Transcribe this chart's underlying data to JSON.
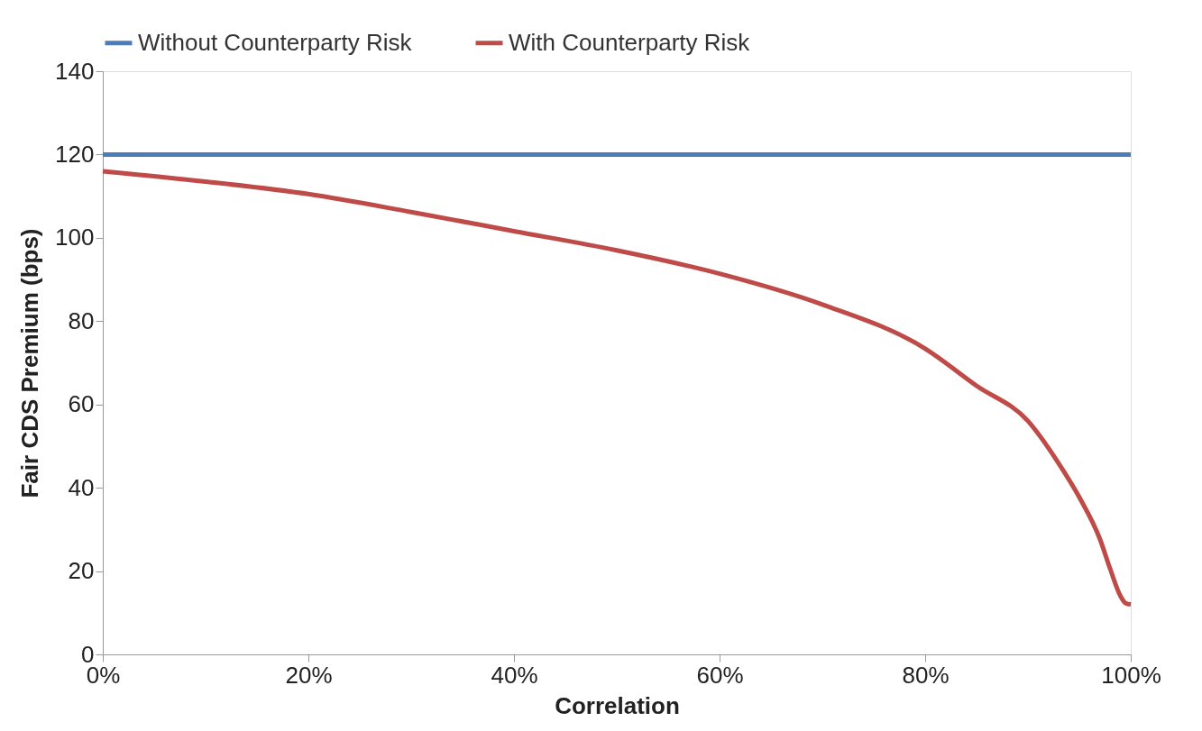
{
  "chart_data": {
    "type": "line",
    "xlabel": "Correlation",
    "ylabel": "Fair CDS Premium (bps)",
    "xlim": [
      0,
      100
    ],
    "xticks": [
      {
        "value": 0,
        "label": "0%"
      },
      {
        "value": 20,
        "label": "20%"
      },
      {
        "value": 40,
        "label": "40%"
      },
      {
        "value": 60,
        "label": "60%"
      },
      {
        "value": 80,
        "label": "80%"
      },
      {
        "value": 100,
        "label": "100%"
      }
    ],
    "ylim": [
      0,
      140
    ],
    "yticks": [
      0,
      20,
      40,
      60,
      80,
      100,
      120,
      140
    ],
    "grid": false,
    "legend": "top",
    "marker": "none",
    "line_style": "solid",
    "series": [
      {
        "name": "Without Counterparty Risk",
        "color": "#4a7ebb",
        "x": [
          0,
          100
        ],
        "values": [
          120,
          120
        ]
      },
      {
        "name": "With Counterparty Risk",
        "color": "#be4b48",
        "x": [
          0,
          10,
          20,
          30,
          40,
          50,
          60,
          70,
          80,
          85,
          90,
          93,
          95,
          97,
          98,
          99,
          99.5,
          100
        ],
        "values": [
          116,
          113.5,
          110.5,
          106.2,
          101.6,
          97,
          91.4,
          84,
          73.4,
          64.5,
          56,
          45.8,
          37.7,
          27.7,
          20.5,
          14,
          12.3,
          12
        ]
      }
    ]
  }
}
